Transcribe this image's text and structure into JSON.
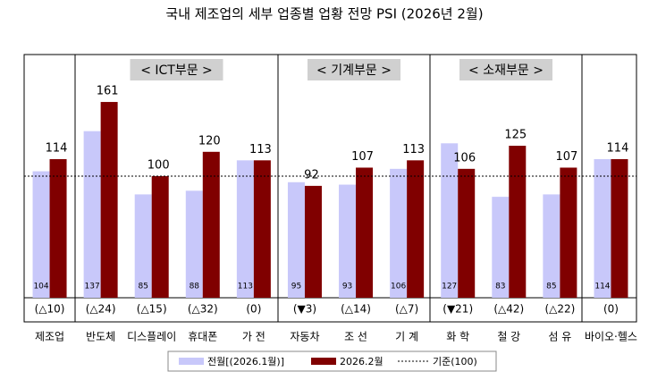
{
  "chart_data": {
    "type": "bar",
    "title": "국내 제조업의 세부 업종별 업황 전망 PSI (2026년 2월)",
    "categories": [
      "제조업",
      "반도체",
      "디스플레이",
      "휴대폰",
      "가 전",
      "자동차",
      "조 선",
      "기 계",
      "화 학",
      "철 강",
      "섬 유",
      "바이오·헬스"
    ],
    "series": [
      {
        "name": "전월[(2026.1월)]",
        "color": "#c8c8fa",
        "values": [
          104,
          137,
          85,
          88,
          113,
          95,
          93,
          106,
          127,
          83,
          85,
          114
        ]
      },
      {
        "name": "2026.2월",
        "color": "#800000",
        "values": [
          114,
          161,
          100,
          120,
          113,
          92,
          107,
          113,
          106,
          125,
          107,
          114
        ]
      }
    ],
    "changes": [
      "(△10)",
      "(△24)",
      "(△15)",
      "(△32)",
      "(0)",
      "(▼3)",
      "(△14)",
      "(△7)",
      "(▼21)",
      "(△42)",
      "(△22)",
      "(0)"
    ],
    "groups": [
      "< ICT부문 >",
      "< 기계부문 >",
      "< 소재부문 >"
    ],
    "reference": {
      "value": 100,
      "label": "기준(100)"
    },
    "ylim": [
      0,
      200
    ]
  }
}
